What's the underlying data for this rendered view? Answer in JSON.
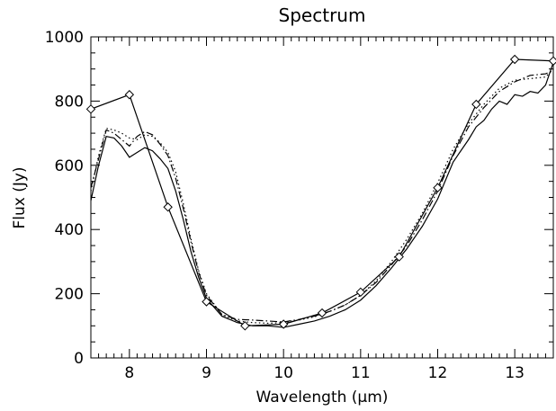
{
  "chart_data": {
    "type": "line",
    "title": "Spectrum",
    "xlabel": "Wavelength (μm)",
    "ylabel": "Flux (Jy)",
    "xlim": [
      7.5,
      13.5
    ],
    "ylim": [
      0,
      1000
    ],
    "x_ticks": [
      8,
      9,
      10,
      11,
      12,
      13
    ],
    "y_ticks": [
      0,
      200,
      400,
      600,
      800,
      1000
    ],
    "grid": false,
    "legend": false,
    "series": [
      {
        "style": "solid-diamond",
        "x": [
          7.5,
          8.0,
          8.5,
          9.0,
          9.5,
          10.0,
          10.5,
          11.0,
          11.5,
          12.0,
          12.5,
          13.0,
          13.5
        ],
        "y": [
          775,
          820,
          470,
          175,
          100,
          105,
          140,
          205,
          315,
          530,
          790,
          930,
          925
        ]
      },
      {
        "style": "solid",
        "x": [
          7.5,
          7.6,
          7.7,
          7.8,
          7.9,
          8.0,
          8.1,
          8.2,
          8.3,
          8.4,
          8.5,
          8.6,
          8.7,
          8.8,
          8.9,
          9.0,
          9.2,
          9.4,
          9.6,
          9.8,
          10.0,
          10.2,
          10.4,
          10.6,
          10.8,
          11.0,
          11.2,
          11.4,
          11.6,
          11.8,
          12.0,
          12.2,
          12.4,
          12.5,
          12.6,
          12.7,
          12.8,
          12.9,
          13.0,
          13.1,
          13.2,
          13.3,
          13.4,
          13.5
        ],
        "y": [
          490,
          600,
          690,
          685,
          660,
          625,
          640,
          655,
          645,
          620,
          590,
          520,
          430,
          330,
          250,
          185,
          130,
          110,
          100,
          100,
          95,
          105,
          115,
          130,
          150,
          180,
          225,
          280,
          340,
          410,
          495,
          610,
          680,
          720,
          740,
          775,
          800,
          790,
          820,
          815,
          830,
          825,
          850,
          920
        ]
      },
      {
        "style": "dotted",
        "x": [
          7.5,
          7.6,
          7.7,
          7.8,
          7.9,
          8.0,
          8.1,
          8.2,
          8.3,
          8.4,
          8.5,
          8.6,
          8.7,
          8.8,
          8.9,
          9.0,
          9.2,
          9.4,
          9.6,
          9.8,
          10.0,
          10.2,
          10.4,
          10.6,
          10.8,
          11.0,
          11.2,
          11.4,
          11.6,
          11.8,
          12.0,
          12.2,
          12.4,
          12.6,
          12.8,
          13.0,
          13.2,
          13.4,
          13.5
        ],
        "y": [
          520,
          630,
          715,
          710,
          700,
          685,
          680,
          695,
          690,
          670,
          640,
          580,
          480,
          370,
          270,
          200,
          135,
          115,
          110,
          108,
          110,
          118,
          128,
          145,
          165,
          195,
          240,
          300,
          370,
          450,
          545,
          650,
          730,
          790,
          840,
          865,
          870,
          875,
          900
        ]
      },
      {
        "style": "dashdot",
        "x": [
          7.5,
          7.6,
          7.7,
          7.8,
          7.9,
          8.0,
          8.1,
          8.2,
          8.3,
          8.4,
          8.5,
          8.6,
          8.7,
          8.8,
          8.9,
          9.0,
          9.2,
          9.4,
          9.6,
          9.8,
          10.0,
          10.2,
          10.4,
          10.6,
          10.8,
          11.0,
          11.2,
          11.4,
          11.6,
          11.8,
          12.0,
          12.2,
          12.4,
          12.6,
          12.8,
          13.0,
          13.2,
          13.4,
          13.5
        ],
        "y": [
          530,
          620,
          710,
          700,
          680,
          660,
          690,
          705,
          695,
          665,
          630,
          560,
          465,
          360,
          265,
          195,
          135,
          120,
          118,
          115,
          112,
          120,
          130,
          145,
          165,
          195,
          235,
          290,
          350,
          430,
          520,
          630,
          720,
          780,
          830,
          860,
          880,
          885,
          895
        ]
      }
    ]
  }
}
